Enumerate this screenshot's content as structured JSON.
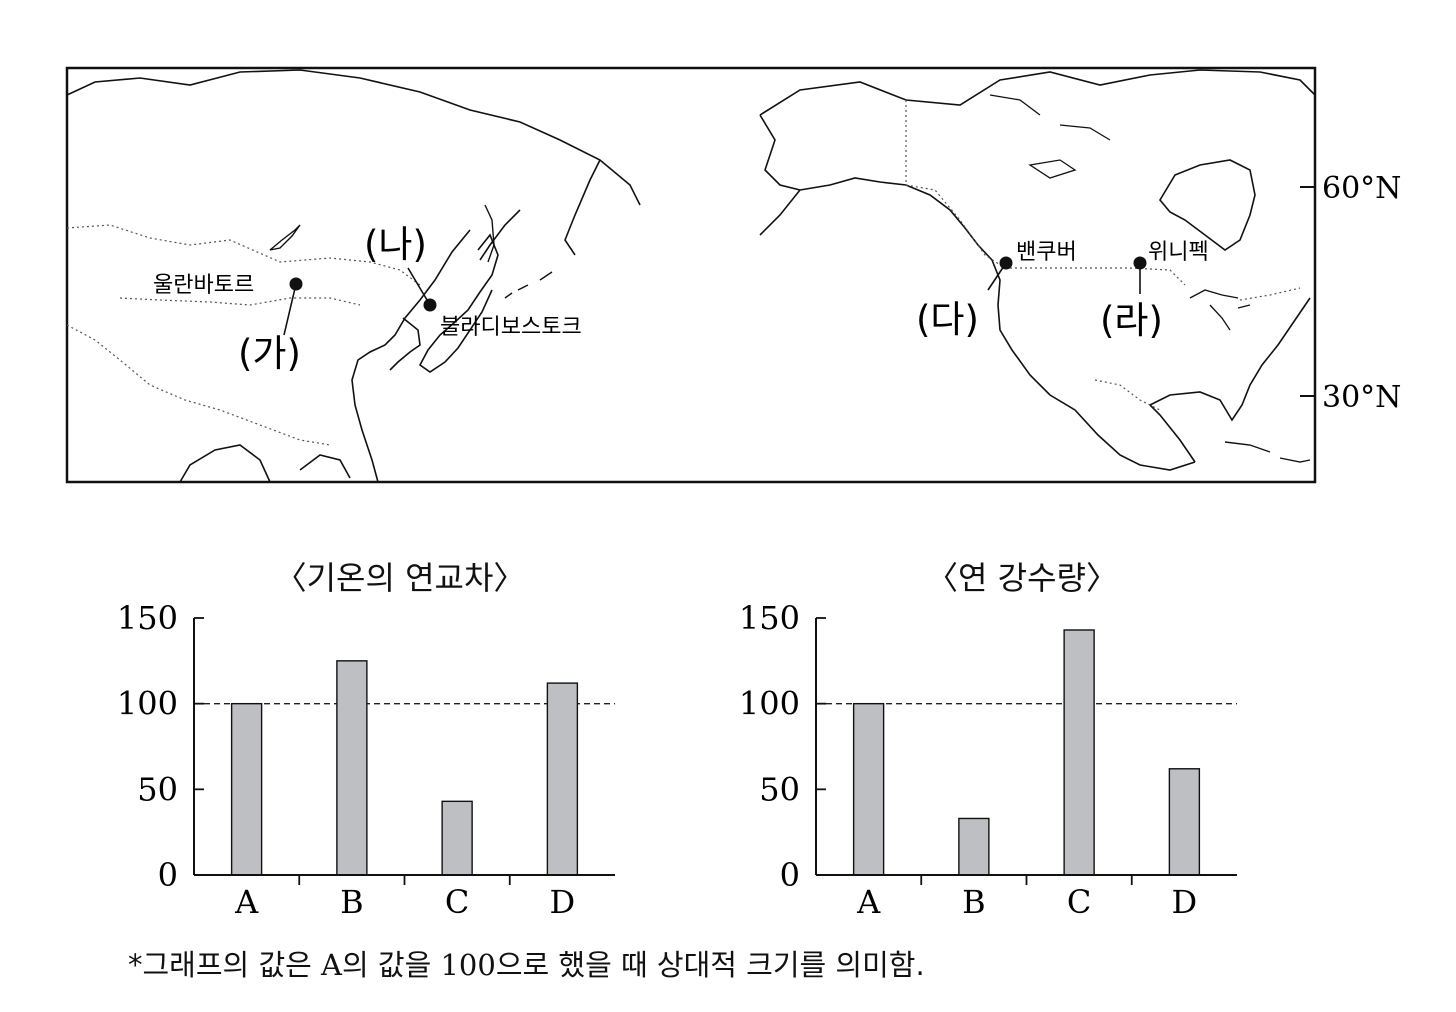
{
  "map": {
    "lat_labels": [
      "60°N",
      "30°N"
    ],
    "places": [
      {
        "marker": "(가)",
        "city": "울란바토르"
      },
      {
        "marker": "(나)",
        "city": "블라디보스토크"
      },
      {
        "marker": "(다)",
        "city": "밴쿠버"
      },
      {
        "marker": "(라)",
        "city": "위니펙"
      }
    ]
  },
  "chart_data": [
    {
      "type": "bar",
      "title": "〈기온의 연교차〉",
      "categories": [
        "A",
        "B",
        "C",
        "D"
      ],
      "values": [
        100,
        125,
        43,
        112
      ],
      "ylim": [
        0,
        150
      ],
      "yticks": [
        "0",
        "50",
        "100",
        "150"
      ],
      "reference_line": 100,
      "bar_color": "#bebfc3"
    },
    {
      "type": "bar",
      "title": "〈연 강수량〉",
      "categories": [
        "A",
        "B",
        "C",
        "D"
      ],
      "values": [
        100,
        33,
        143,
        62
      ],
      "ylim": [
        0,
        150
      ],
      "yticks": [
        "0",
        "50",
        "100",
        "150"
      ],
      "reference_line": 100,
      "bar_color": "#bebfc3"
    }
  ],
  "footnote": {
    "prefix": "*그래프의 값은 ",
    "latin": "A",
    "middle": "의 값을 ",
    "number": "100",
    "suffix": "으로 했을 때 상대적 크기를 의미함."
  }
}
